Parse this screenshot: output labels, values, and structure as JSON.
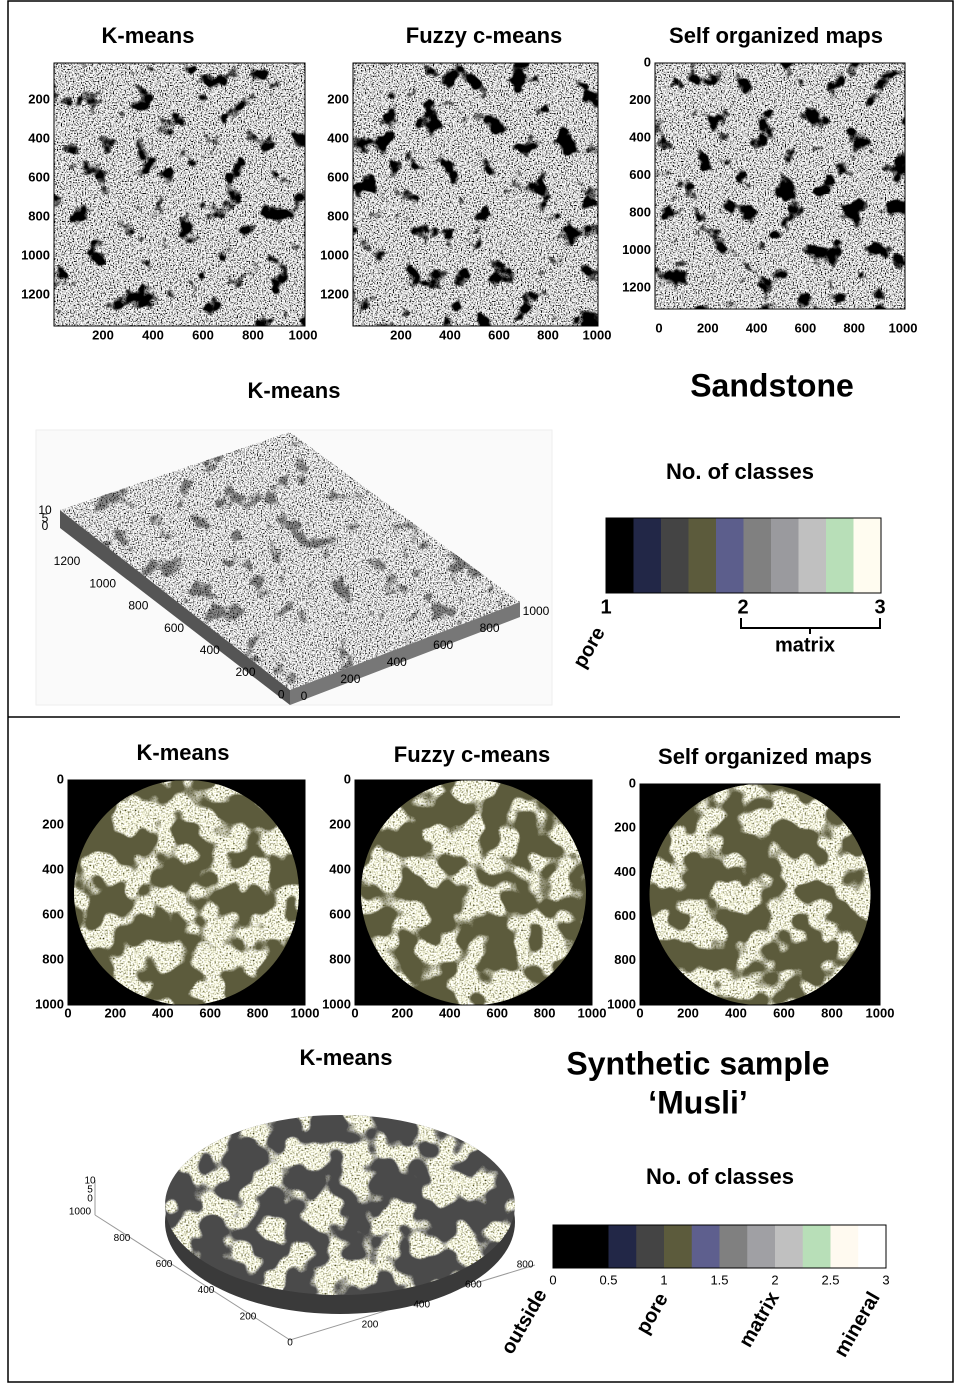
{
  "panels": [
    {
      "title_lines": [
        "Sandstone"
      ],
      "plots": [
        {
          "title": "K-means",
          "yticks": [
            200,
            400,
            600,
            800,
            1000,
            1200
          ],
          "xticks": [
            200,
            400,
            600,
            800,
            1000
          ]
        },
        {
          "title": "Fuzzy c-means",
          "yticks": [
            200,
            400,
            600,
            800,
            1000,
            1200
          ],
          "xticks": [
            200,
            400,
            600,
            800,
            1000
          ]
        },
        {
          "title": "Self organized maps",
          "yticks": [
            0,
            200,
            400,
            600,
            800,
            1000,
            1200
          ],
          "xticks": [
            0,
            200,
            400,
            600,
            800,
            1000
          ]
        }
      ],
      "view3d": {
        "title": "K-means",
        "zticks": [
          10,
          5,
          0
        ],
        "yticks": [
          1200,
          1000,
          800,
          600,
          400,
          200,
          0
        ],
        "xticks": [
          0,
          200,
          400,
          600,
          800,
          1000
        ]
      },
      "colorbar": {
        "title": "No. of classes",
        "colors": [
          "#000000",
          "#222747",
          "#444444",
          "#5c5b3c",
          "#5c5e8c",
          "#808080",
          "#9a9a9e",
          "#c0c0c0",
          "#b8dfb8",
          "#fffcf0"
        ],
        "ticks": [
          1,
          2,
          3
        ],
        "labels": [
          "pore",
          "matrix"
        ]
      }
    },
    {
      "title_lines": [
        "Synthetic sample",
        "‘Musli’"
      ],
      "plots": [
        {
          "title": "K-means",
          "yticks": [
            0,
            200,
            400,
            600,
            800,
            1000
          ],
          "xticks": [
            0,
            200,
            400,
            600,
            800,
            1000
          ]
        },
        {
          "title": "Fuzzy c-means",
          "yticks": [
            0,
            200,
            400,
            600,
            800,
            1000
          ],
          "xticks": [
            0,
            200,
            400,
            600,
            800,
            1000
          ]
        },
        {
          "title": "Self organized maps",
          "yticks": [
            0,
            200,
            400,
            600,
            800,
            1000
          ],
          "xticks": [
            0,
            200,
            400,
            600,
            800,
            1000
          ]
        }
      ],
      "view3d": {
        "title": "K-means",
        "zticks": [
          10,
          5,
          0
        ],
        "yticks": [
          1000,
          800,
          600,
          400,
          200,
          0
        ],
        "xticks": [
          200,
          400,
          600,
          800
        ]
      },
      "colorbar": {
        "title": "No. of classes",
        "colors": [
          "#000000",
          "#000000",
          "#222747",
          "#444444",
          "#5c5b3c",
          "#5e5f8e",
          "#808080",
          "#a0a0a4",
          "#c0c0c0",
          "#b8dfb8",
          "#fffaf0",
          "#ffffff"
        ],
        "ticks": [
          0,
          0.5,
          1,
          1.5,
          2,
          2.5,
          3
        ],
        "labels": [
          "outside",
          "pore",
          "matrix",
          "mineral"
        ]
      }
    }
  ]
}
